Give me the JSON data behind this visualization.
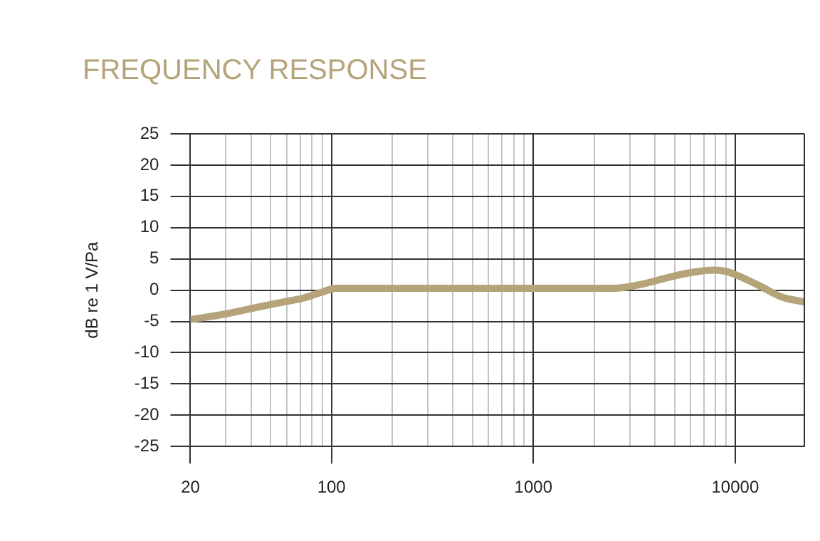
{
  "chart_data": {
    "type": "line",
    "title": "FREQUENCY RESPONSE",
    "ylabel": "dB re 1 V/Pa",
    "x": [
      20,
      30,
      45,
      60,
      72,
      90,
      105,
      1000,
      2500,
      3500,
      4500,
      6000,
      7800,
      9000,
      10000,
      13000,
      17000,
      22000
    ],
    "series": [
      {
        "color": "#b5a47a",
        "values": [
          -4.7,
          -3.8,
          -2.6,
          -1.8,
          -1.3,
          -0.3,
          0.3,
          0.3,
          0.3,
          1.0,
          1.9,
          2.8,
          3.2,
          3.0,
          2.5,
          0.8,
          -1.1,
          -1.9
        ]
      }
    ],
    "log": "x",
    "xlim": [
      20,
      22000
    ],
    "xticks": [
      20,
      {
        "value": 30,
        "label": null
      },
      {
        "value": 40,
        "label": null
      },
      {
        "value": 50,
        "label": null
      },
      {
        "value": 60,
        "label": null
      },
      {
        "value": 70,
        "label": null
      },
      {
        "value": 80,
        "label": null
      },
      {
        "value": 90,
        "label": null
      },
      100,
      {
        "value": 200,
        "label": null
      },
      {
        "value": 300,
        "label": null
      },
      {
        "value": 400,
        "label": null
      },
      {
        "value": 500,
        "label": null
      },
      {
        "value": 600,
        "label": null
      },
      {
        "value": 700,
        "label": null
      },
      {
        "value": 800,
        "label": null
      },
      {
        "value": 900,
        "label": null
      },
      1000,
      {
        "value": 2000,
        "label": null
      },
      {
        "value": 3000,
        "label": null
      },
      {
        "value": 4000,
        "label": null
      },
      {
        "value": 5000,
        "label": null
      },
      {
        "value": 6000,
        "label": null
      },
      {
        "value": 7000,
        "label": null
      },
      {
        "value": 8000,
        "label": null
      },
      {
        "value": 9000,
        "label": null
      },
      10000
    ],
    "ylim": [
      -25,
      25
    ],
    "yticks": [
      -25,
      -20,
      -15,
      -10,
      -5,
      0,
      5,
      10,
      15,
      20,
      25
    ],
    "grid": true,
    "legend": false,
    "marker": "none",
    "line_style": "solid"
  }
}
